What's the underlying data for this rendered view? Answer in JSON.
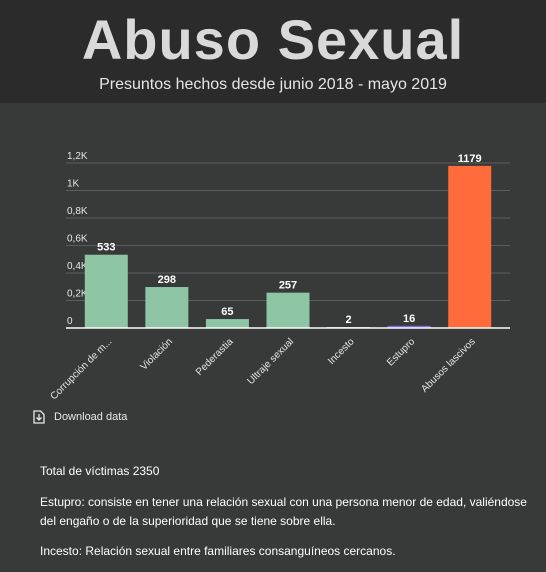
{
  "header": {
    "title": "Abuso Sexual",
    "subtitle": "Presuntos hechos desde junio 2018 - mayo 2019"
  },
  "chart_data": {
    "type": "bar",
    "categories": [
      "Corrupción de m...",
      "Violación",
      "Pederastia",
      "Ultraje sexual",
      "Incesto",
      "Estupro",
      "Abusos lascivos"
    ],
    "values": [
      533,
      298,
      65,
      257,
      2,
      16,
      1179
    ],
    "data_labels": [
      "533",
      "298",
      "65",
      "257",
      "2",
      "16",
      "1179"
    ],
    "bar_colors": [
      "#8ec5a5",
      "#8ec5a5",
      "#8ec5a5",
      "#8ec5a5",
      "#8ec5a5",
      "#7b68ee",
      "#ff6b3a"
    ],
    "yticks": [
      0,
      200,
      400,
      600,
      800,
      1000,
      1200
    ],
    "ytick_labels": [
      "0",
      "0,2K",
      "0,4K",
      "0,6K",
      "0,8K",
      "1K",
      "1,2K"
    ],
    "ylim": [
      0,
      1200
    ],
    "grid": true,
    "xlabel": "",
    "ylabel": ""
  },
  "download": {
    "label": "Download data",
    "icon": "download-icon"
  },
  "notes": {
    "total": "Total de víctimas 2350",
    "estupro": "Estupro: consiste en tener una relación sexual con una  persona menor de edad, valiéndose del engaño o de la superioridad que se  tiene sobre ella.",
    "incesto": "Incesto: Relación sexual entre familiares consanguíneos cercanos."
  }
}
